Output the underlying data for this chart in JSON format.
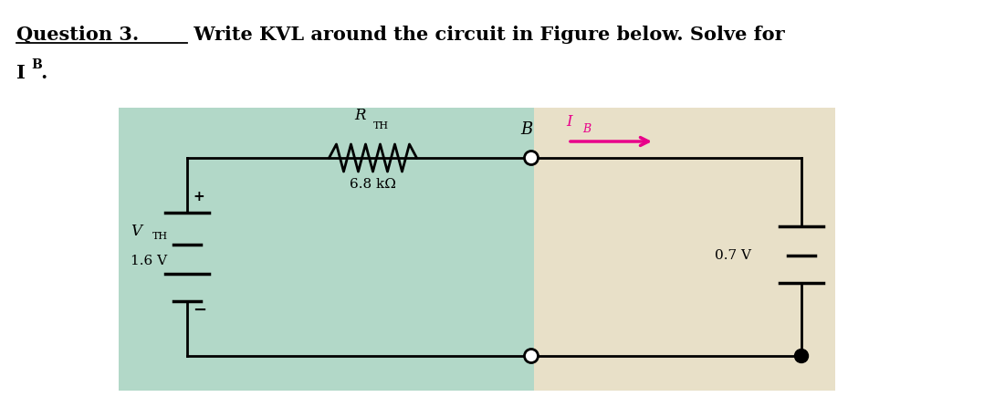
{
  "title_line1_underlined": "Question 3.",
  "title_rest": " Write KVL around the circuit in Figure below. Solve for",
  "title_line2_I": "I",
  "title_line2_sub": "B",
  "title_line2_end": ".",
  "bg_color_left": "#b2d8c8",
  "bg_color_right": "#e8e0c8",
  "resistor_value": "6.8 kΩ",
  "vth_value": "1.6 V",
  "vbe_value": "0.7 V",
  "node_label": "B",
  "current_label": "I",
  "current_sub": "B",
  "current_color": "#e8008a",
  "wire_color": "#000000",
  "text_color": "#000000",
  "plus_symbol": "+",
  "minus_symbol": "−",
  "vth_V": "V",
  "vth_sub": "TH",
  "res_R": "R",
  "res_sub": "TH"
}
